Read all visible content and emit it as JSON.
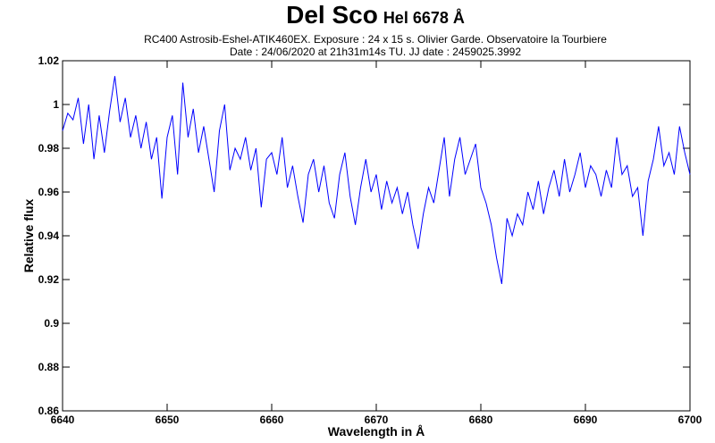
{
  "chart_data": {
    "type": "line",
    "title": "Del Sco",
    "line_label": "Hel 6678 Å",
    "subtitle": [
      "RC400 Astrosib-Eshel-ATIK460EX. Exposure : 24 x 15 s. Olivier Garde. Observatoire la Tourbiere",
      "Date : 24/06/2020 at 21h31m14s TU. JJ date : 2459025.3992"
    ],
    "x_label": "Wavelength in Å",
    "y_label": "Relative flux",
    "xlim": [
      6640,
      6700
    ],
    "xticks": [
      6640,
      6650,
      6660,
      6670,
      6680,
      6690,
      6700
    ],
    "ylim": [
      0.86,
      1.02
    ],
    "yticks": [
      0.86,
      0.88,
      0.9,
      0.92,
      0.94,
      0.96,
      0.98,
      1,
      1.02
    ],
    "series": [
      {
        "color": "#0000ff",
        "x": [
          6640.0,
          6640.5,
          6641.0,
          6641.5,
          6642.0,
          6642.5,
          6643.0,
          6643.5,
          6644.0,
          6644.5,
          6645.0,
          6645.5,
          6646.0,
          6646.5,
          6647.0,
          6647.5,
          6648.0,
          6648.5,
          6649.0,
          6649.5,
          6650.0,
          6650.5,
          6651.0,
          6651.5,
          6652.0,
          6652.5,
          6653.0,
          6653.5,
          6654.0,
          6654.5,
          6655.0,
          6655.5,
          6656.0,
          6656.5,
          6657.0,
          6657.5,
          6658.0,
          6658.5,
          6659.0,
          6659.5,
          6660.0,
          6660.5,
          6661.0,
          6661.5,
          6662.0,
          6662.5,
          6663.0,
          6663.5,
          6664.0,
          6664.5,
          6665.0,
          6665.5,
          6666.0,
          6666.5,
          6667.0,
          6667.5,
          6668.0,
          6668.5,
          6669.0,
          6669.5,
          6670.0,
          6670.5,
          6671.0,
          6671.5,
          6672.0,
          6672.5,
          6673.0,
          6673.5,
          6674.0,
          6674.5,
          6675.0,
          6675.5,
          6676.0,
          6676.5,
          6677.0,
          6677.5,
          6678.0,
          6678.5,
          6679.0,
          6679.5,
          6680.0,
          6680.5,
          6681.0,
          6681.5,
          6682.0,
          6682.5,
          6683.0,
          6683.5,
          6684.0,
          6684.5,
          6685.0,
          6685.5,
          6686.0,
          6686.5,
          6687.0,
          6687.5,
          6688.0,
          6688.5,
          6689.0,
          6689.5,
          6690.0,
          6690.5,
          6691.0,
          6691.5,
          6692.0,
          6692.5,
          6693.0,
          6693.5,
          6694.0,
          6694.5,
          6695.0,
          6695.5,
          6696.0,
          6696.5,
          6697.0,
          6697.5,
          6698.0,
          6698.5,
          6699.0,
          6699.5,
          6700.0
        ],
        "values": [
          0.988,
          0.996,
          0.993,
          1.003,
          0.982,
          1.0,
          0.975,
          0.995,
          0.978,
          0.997,
          1.013,
          0.992,
          1.003,
          0.985,
          0.995,
          0.98,
          0.992,
          0.975,
          0.985,
          0.957,
          0.985,
          0.995,
          0.968,
          1.01,
          0.985,
          0.998,
          0.978,
          0.99,
          0.975,
          0.96,
          0.988,
          1.0,
          0.97,
          0.98,
          0.975,
          0.985,
          0.97,
          0.98,
          0.953,
          0.975,
          0.978,
          0.968,
          0.985,
          0.962,
          0.972,
          0.958,
          0.946,
          0.968,
          0.975,
          0.96,
          0.972,
          0.955,
          0.948,
          0.968,
          0.978,
          0.958,
          0.945,
          0.962,
          0.975,
          0.96,
          0.968,
          0.952,
          0.965,
          0.955,
          0.962,
          0.95,
          0.96,
          0.945,
          0.934,
          0.95,
          0.962,
          0.955,
          0.97,
          0.985,
          0.958,
          0.975,
          0.985,
          0.968,
          0.975,
          0.982,
          0.962,
          0.955,
          0.945,
          0.93,
          0.918,
          0.948,
          0.94,
          0.95,
          0.945,
          0.96,
          0.952,
          0.965,
          0.95,
          0.962,
          0.97,
          0.958,
          0.975,
          0.96,
          0.968,
          0.978,
          0.962,
          0.972,
          0.968,
          0.958,
          0.97,
          0.962,
          0.985,
          0.968,
          0.972,
          0.958,
          0.962,
          0.94,
          0.965,
          0.975,
          0.99,
          0.972,
          0.978,
          0.968,
          0.99,
          0.978,
          0.968
        ]
      }
    ]
  }
}
